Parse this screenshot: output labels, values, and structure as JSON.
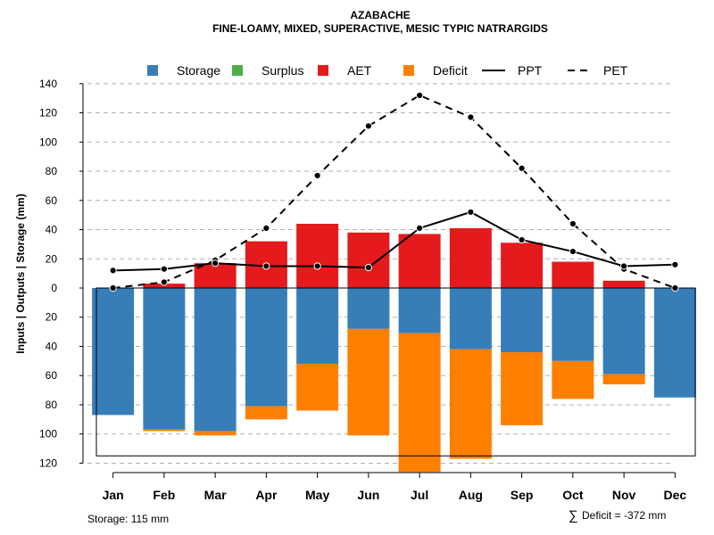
{
  "chart_data": {
    "type": "bar",
    "title": "AZABACHE",
    "subtitle": "FINE-LOAMY, MIXED, SUPERACTIVE, MESIC TYPIC NATRARGIDS",
    "ylabel": "Inputs | Outputs | Storage    (mm)",
    "xlabel": "",
    "ylim": [
      -120,
      140
    ],
    "yticks": [
      140,
      120,
      100,
      80,
      60,
      40,
      20,
      0,
      -20,
      -40,
      -60,
      -80,
      -100,
      -120
    ],
    "ytick_labels": [
      "140",
      "120",
      "100",
      "80",
      "60",
      "40",
      "20",
      "0",
      "20",
      "40",
      "60",
      "80",
      "100",
      "120"
    ],
    "grid": true,
    "legend_position": "top",
    "categories": [
      "Jan",
      "Feb",
      "Mar",
      "Apr",
      "May",
      "Jun",
      "Jul",
      "Aug",
      "Sep",
      "Oct",
      "Nov",
      "Dec"
    ],
    "legend": [
      {
        "label": "Storage",
        "kind": "box",
        "color": "#377EB8"
      },
      {
        "label": "Surplus",
        "kind": "box",
        "color": "#4DAF4A"
      },
      {
        "label": "AET",
        "kind": "box",
        "color": "#E41A1C"
      },
      {
        "label": "Deficit",
        "kind": "box",
        "color": "#FF7F00"
      },
      {
        "label": "PPT",
        "kind": "solid",
        "color": "#000000"
      },
      {
        "label": "PET",
        "kind": "dashed",
        "color": "#000000"
      }
    ],
    "series": [
      {
        "name": "AET",
        "color": "#E41A1C",
        "values": [
          0,
          3,
          17,
          32,
          44,
          38,
          37,
          41,
          31,
          18,
          5,
          0
        ]
      },
      {
        "name": "Storage",
        "color": "#377EB8",
        "values": [
          87,
          97,
          98,
          81,
          52,
          28,
          31,
          42,
          44,
          50,
          59,
          75
        ]
      },
      {
        "name": "Deficit",
        "color": "#FF7F00",
        "values": [
          0,
          1,
          3,
          9,
          32,
          73,
          95,
          75,
          50,
          26,
          7,
          0
        ]
      },
      {
        "name": "PPT",
        "color": "#000000",
        "values": [
          12,
          13,
          17,
          15,
          15,
          14,
          41,
          52,
          33,
          25,
          15,
          16
        ]
      },
      {
        "name": "PET",
        "color": "#000000",
        "values": [
          0,
          4,
          19,
          41,
          77,
          111,
          132,
          117,
          82,
          44,
          13,
          0
        ]
      }
    ],
    "storage_capacity": 115,
    "footer_left": "Storage: 115 mm",
    "footer_sigma": "∑",
    "footer_right": "Deficit = -372 mm"
  }
}
